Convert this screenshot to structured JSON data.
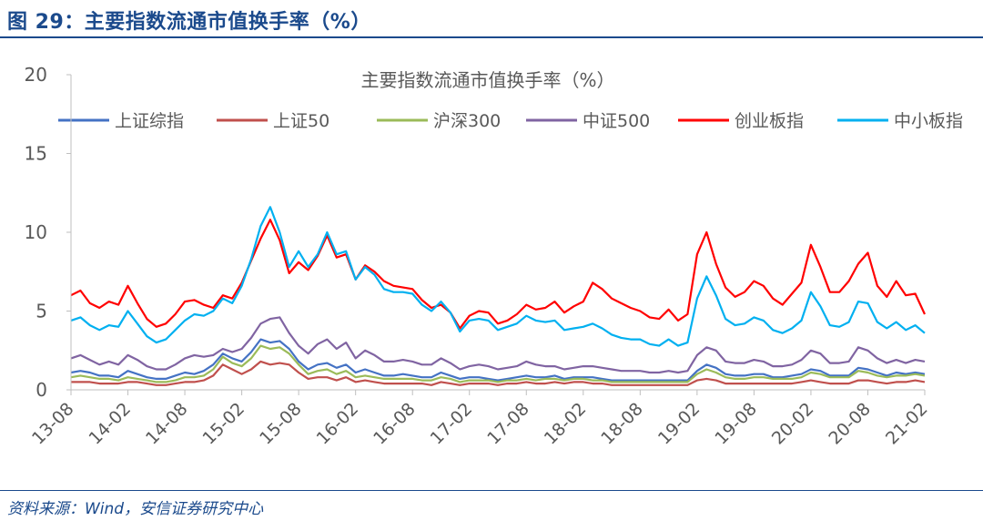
{
  "figure_title": "图 29：主要指数流通市值换手率（%）",
  "source_note": "资料来源：Wind，安信证券研究中心",
  "colors": {
    "brand": "#1b4a8c",
    "axis": "#bfbfbf",
    "text": "#595959"
  },
  "chart_data": {
    "type": "line",
    "title": "主要指数流通市值换手率（%）",
    "xlabel": "",
    "ylabel": "",
    "ylim": [
      0,
      20
    ],
    "yticks": [
      0,
      5,
      10,
      15,
      20
    ],
    "grid": false,
    "legend_position": "top",
    "x_tick_labels": [
      "13-08",
      "14-02",
      "14-08",
      "15-02",
      "15-08",
      "16-02",
      "16-08",
      "17-02",
      "17-08",
      "18-02",
      "18-08",
      "19-02",
      "19-08",
      "20-02",
      "20-08",
      "21-02"
    ],
    "x_monthly": [
      "13-08",
      "13-09",
      "13-10",
      "13-11",
      "13-12",
      "14-01",
      "14-02",
      "14-03",
      "14-04",
      "14-05",
      "14-06",
      "14-07",
      "14-08",
      "14-09",
      "14-10",
      "14-11",
      "14-12",
      "15-01",
      "15-02",
      "15-03",
      "15-04",
      "15-05",
      "15-06",
      "15-07",
      "15-08",
      "15-09",
      "15-10",
      "15-11",
      "15-12",
      "16-01",
      "16-02",
      "16-03",
      "16-04",
      "16-05",
      "16-06",
      "16-07",
      "16-08",
      "16-09",
      "16-10",
      "16-11",
      "16-12",
      "17-01",
      "17-02",
      "17-03",
      "17-04",
      "17-05",
      "17-06",
      "17-07",
      "17-08",
      "17-09",
      "17-10",
      "17-11",
      "17-12",
      "18-01",
      "18-02",
      "18-03",
      "18-04",
      "18-05",
      "18-06",
      "18-07",
      "18-08",
      "18-09",
      "18-10",
      "18-11",
      "18-12",
      "19-01",
      "19-02",
      "19-03",
      "19-04",
      "19-05",
      "19-06",
      "19-07",
      "19-08",
      "19-09",
      "19-10",
      "19-11",
      "19-12",
      "20-01",
      "20-02",
      "20-03",
      "20-04",
      "20-05",
      "20-06",
      "20-07",
      "20-08",
      "20-09",
      "20-10",
      "20-11",
      "20-12",
      "21-01",
      "21-02"
    ],
    "series": [
      {
        "name": "上证综指",
        "color": "#4472c4",
        "values": [
          1.1,
          1.2,
          1.1,
          0.9,
          0.9,
          0.8,
          1.2,
          1.0,
          0.8,
          0.7,
          0.7,
          0.9,
          1.1,
          1.0,
          1.2,
          1.6,
          2.3,
          2.0,
          1.8,
          2.4,
          3.2,
          3.0,
          3.1,
          2.6,
          1.8,
          1.3,
          1.6,
          1.7,
          1.4,
          1.6,
          1.1,
          1.3,
          1.1,
          0.9,
          0.9,
          1.0,
          0.9,
          0.8,
          0.8,
          1.1,
          0.9,
          0.7,
          0.8,
          0.8,
          0.7,
          0.6,
          0.7,
          0.8,
          0.9,
          0.8,
          0.8,
          0.9,
          0.7,
          0.8,
          0.8,
          0.8,
          0.7,
          0.6,
          0.6,
          0.6,
          0.6,
          0.6,
          0.6,
          0.6,
          0.6,
          0.6,
          1.2,
          1.6,
          1.4,
          1.0,
          0.9,
          0.9,
          1.0,
          1.0,
          0.8,
          0.8,
          0.9,
          1.0,
          1.3,
          1.2,
          0.9,
          0.9,
          0.9,
          1.4,
          1.3,
          1.1,
          0.9,
          1.1,
          1.0,
          1.1,
          1.0
        ]
      },
      {
        "name": "上证50",
        "color": "#c0504d",
        "values": [
          0.5,
          0.5,
          0.5,
          0.4,
          0.4,
          0.4,
          0.5,
          0.5,
          0.4,
          0.3,
          0.3,
          0.4,
          0.5,
          0.5,
          0.6,
          0.9,
          1.6,
          1.3,
          1.0,
          1.3,
          1.8,
          1.6,
          1.7,
          1.6,
          1.1,
          0.7,
          0.8,
          0.8,
          0.6,
          0.8,
          0.5,
          0.6,
          0.5,
          0.4,
          0.4,
          0.4,
          0.4,
          0.4,
          0.3,
          0.5,
          0.4,
          0.3,
          0.4,
          0.4,
          0.4,
          0.3,
          0.4,
          0.4,
          0.5,
          0.4,
          0.4,
          0.5,
          0.4,
          0.5,
          0.5,
          0.4,
          0.4,
          0.3,
          0.3,
          0.3,
          0.3,
          0.3,
          0.3,
          0.3,
          0.3,
          0.3,
          0.6,
          0.7,
          0.6,
          0.4,
          0.4,
          0.4,
          0.4,
          0.4,
          0.4,
          0.4,
          0.4,
          0.5,
          0.6,
          0.5,
          0.4,
          0.4,
          0.4,
          0.6,
          0.6,
          0.5,
          0.4,
          0.5,
          0.5,
          0.6,
          0.5
        ]
      },
      {
        "name": "沪深300",
        "color": "#9bbb59",
        "values": [
          0.8,
          0.9,
          0.8,
          0.7,
          0.7,
          0.6,
          0.8,
          0.7,
          0.6,
          0.5,
          0.5,
          0.6,
          0.8,
          0.8,
          0.9,
          1.3,
          2.1,
          1.7,
          1.5,
          2.0,
          2.8,
          2.6,
          2.7,
          2.3,
          1.6,
          1.0,
          1.2,
          1.3,
          1.0,
          1.2,
          0.8,
          0.9,
          0.8,
          0.7,
          0.7,
          0.7,
          0.7,
          0.6,
          0.6,
          0.8,
          0.7,
          0.5,
          0.6,
          0.6,
          0.6,
          0.5,
          0.6,
          0.6,
          0.7,
          0.6,
          0.7,
          0.7,
          0.6,
          0.7,
          0.7,
          0.6,
          0.6,
          0.5,
          0.5,
          0.5,
          0.5,
          0.5,
          0.5,
          0.5,
          0.5,
          0.5,
          1.0,
          1.3,
          1.1,
          0.8,
          0.7,
          0.7,
          0.8,
          0.8,
          0.7,
          0.7,
          0.7,
          0.8,
          1.1,
          1.0,
          0.8,
          0.8,
          0.8,
          1.2,
          1.1,
          0.9,
          0.8,
          0.9,
          0.9,
          1.0,
          0.9
        ]
      },
      {
        "name": "中证500",
        "color": "#8064a2",
        "values": [
          2.0,
          2.2,
          1.9,
          1.6,
          1.8,
          1.6,
          2.2,
          1.9,
          1.5,
          1.3,
          1.3,
          1.6,
          2.0,
          2.2,
          2.1,
          2.2,
          2.6,
          2.4,
          2.6,
          3.3,
          4.2,
          4.5,
          4.6,
          3.6,
          2.8,
          2.3,
          2.9,
          3.2,
          2.6,
          3.0,
          2.0,
          2.5,
          2.2,
          1.8,
          1.8,
          1.9,
          1.8,
          1.6,
          1.6,
          2.0,
          1.7,
          1.3,
          1.5,
          1.6,
          1.5,
          1.3,
          1.4,
          1.5,
          1.8,
          1.6,
          1.5,
          1.5,
          1.3,
          1.4,
          1.5,
          1.5,
          1.4,
          1.3,
          1.2,
          1.2,
          1.2,
          1.1,
          1.1,
          1.2,
          1.1,
          1.2,
          2.2,
          2.7,
          2.5,
          1.8,
          1.7,
          1.7,
          1.9,
          1.8,
          1.5,
          1.5,
          1.6,
          1.9,
          2.5,
          2.3,
          1.7,
          1.7,
          1.8,
          2.7,
          2.5,
          2.0,
          1.7,
          1.9,
          1.7,
          1.9,
          1.8
        ]
      },
      {
        "name": "创业板指",
        "color": "#ff0000",
        "values": [
          6.0,
          6.3,
          5.5,
          5.2,
          5.6,
          5.4,
          6.6,
          5.5,
          4.5,
          4.0,
          4.2,
          4.8,
          5.6,
          5.7,
          5.4,
          5.2,
          6.0,
          5.8,
          6.8,
          8.2,
          9.6,
          10.8,
          9.5,
          7.4,
          8.1,
          7.6,
          8.5,
          9.8,
          8.4,
          8.6,
          7.0,
          7.9,
          7.5,
          6.9,
          6.6,
          6.5,
          6.4,
          5.7,
          5.2,
          5.4,
          4.9,
          3.9,
          4.7,
          5.0,
          4.9,
          4.2,
          4.4,
          4.8,
          5.4,
          5.1,
          5.2,
          5.6,
          4.9,
          5.3,
          5.6,
          6.8,
          6.4,
          5.8,
          5.5,
          5.2,
          5.0,
          4.6,
          4.5,
          5.1,
          4.4,
          4.8,
          8.6,
          10.0,
          8.0,
          6.5,
          5.9,
          6.2,
          6.9,
          6.6,
          5.8,
          5.4,
          6.1,
          6.8,
          9.2,
          7.8,
          6.2,
          6.2,
          6.9,
          8.0,
          8.7,
          6.6,
          5.9,
          6.9,
          6.0,
          6.1,
          4.8
        ]
      },
      {
        "name": "中小板指",
        "color": "#00b0f0",
        "values": [
          4.4,
          4.6,
          4.1,
          3.8,
          4.1,
          4.0,
          5.0,
          4.2,
          3.4,
          3.0,
          3.2,
          3.8,
          4.4,
          4.8,
          4.7,
          5.0,
          5.8,
          5.5,
          6.6,
          8.3,
          10.4,
          11.6,
          10.0,
          7.8,
          8.8,
          7.8,
          8.6,
          10.0,
          8.6,
          8.8,
          7.0,
          7.8,
          7.3,
          6.4,
          6.2,
          6.2,
          6.1,
          5.4,
          5.0,
          5.6,
          4.9,
          3.7,
          4.4,
          4.5,
          4.4,
          3.8,
          4.0,
          4.2,
          4.7,
          4.4,
          4.3,
          4.4,
          3.8,
          3.9,
          4.0,
          4.2,
          3.9,
          3.5,
          3.3,
          3.2,
          3.2,
          2.9,
          2.8,
          3.2,
          2.8,
          3.0,
          5.8,
          7.2,
          6.0,
          4.5,
          4.1,
          4.2,
          4.6,
          4.4,
          3.8,
          3.6,
          3.9,
          4.4,
          6.2,
          5.3,
          4.1,
          4.0,
          4.3,
          5.6,
          5.5,
          4.3,
          3.9,
          4.3,
          3.8,
          4.1,
          3.6
        ]
      }
    ]
  }
}
